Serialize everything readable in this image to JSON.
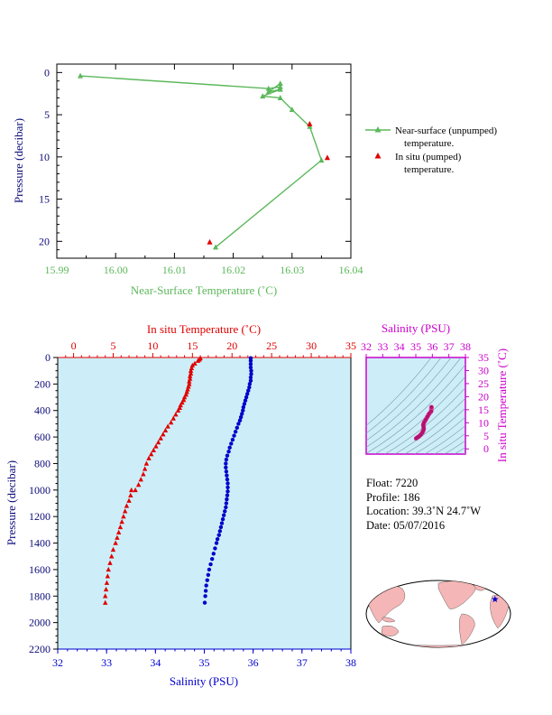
{
  "colors": {
    "green": "#5cb85c",
    "red": "#e00000",
    "blue": "#0000cc",
    "magenta": "#cc00cc",
    "navy": "#0b0b7a",
    "pink": "#e0449a",
    "panel_bg": "#cdeef8",
    "frame": "#000000"
  },
  "chart_data": [
    {
      "type": "scatter",
      "title": "",
      "xlabel": "Near-Surface Temperature (˚C)",
      "ylabel": "Pressure (decibar)",
      "xlim": [
        15.99,
        16.04
      ],
      "ylim": [
        22,
        -1
      ],
      "x_ticks": [
        "15.99",
        "16.00",
        "16.01",
        "16.02",
        "16.03",
        "16.04"
      ],
      "y_ticks": [
        "0",
        "5",
        "10",
        "15",
        "20"
      ],
      "grid": false,
      "legend_position": "right",
      "legend": [
        {
          "line1": "Near-surface (unpumped)",
          "line2": "temperature."
        },
        {
          "line1": "In situ (pumped)",
          "line2": "temperature."
        }
      ],
      "series": [
        {
          "name": "Near-surface (unpumped) temperature",
          "points": [
            [
              15.994,
              0.4
            ],
            [
              16.026,
              1.9
            ],
            [
              16.028,
              1.7
            ],
            [
              16.028,
              1.3
            ],
            [
              16.026,
              2.3
            ],
            [
              16.028,
              2.0
            ],
            [
              16.025,
              2.8
            ],
            [
              16.028,
              3.0
            ],
            [
              16.03,
              4.4
            ],
            [
              16.033,
              6.4
            ],
            [
              16.035,
              10.4
            ],
            [
              16.017,
              20.7
            ]
          ]
        },
        {
          "name": "In situ (pumped) temperature",
          "points": [
            [
              16.033,
              6.1
            ],
            [
              16.036,
              10.1
            ],
            [
              16.016,
              20.1
            ]
          ]
        }
      ]
    },
    {
      "type": "scatter",
      "title": "",
      "x_top_label": "In situ Temperature (˚C)",
      "x_top_lim": [
        -2,
        35
      ],
      "x_top_ticks": [
        "0",
        "5",
        "10",
        "15",
        "20",
        "25",
        "30",
        "35"
      ],
      "x_bottom_label": "Salinity (PSU)",
      "x_bottom_lim": [
        32,
        38
      ],
      "x_bottom_ticks": [
        "32",
        "33",
        "34",
        "35",
        "36",
        "37",
        "38"
      ],
      "ylabel": "Pressure (decibar)",
      "ylim": [
        2200,
        0
      ],
      "y_ticks": [
        "0",
        "200",
        "400",
        "600",
        "800",
        "1000",
        "1200",
        "1400",
        "1600",
        "1800",
        "2000",
        "2200"
      ],
      "grid": false,
      "temperature_profile": [
        [
          16.0,
          5
        ],
        [
          15.9,
          15
        ],
        [
          15.7,
          25
        ],
        [
          15.3,
          45
        ],
        [
          15.0,
          60
        ],
        [
          14.9,
          80
        ],
        [
          14.8,
          100
        ],
        [
          14.8,
          120
        ],
        [
          14.7,
          140
        ],
        [
          14.7,
          160
        ],
        [
          14.6,
          180
        ],
        [
          14.6,
          200
        ],
        [
          14.5,
          220
        ],
        [
          14.4,
          240
        ],
        [
          14.3,
          260
        ],
        [
          14.2,
          280
        ],
        [
          14.0,
          300
        ],
        [
          13.9,
          320
        ],
        [
          13.7,
          340
        ],
        [
          13.5,
          360
        ],
        [
          13.4,
          380
        ],
        [
          13.2,
          400
        ],
        [
          12.9,
          430
        ],
        [
          12.6,
          460
        ],
        [
          12.3,
          490
        ],
        [
          11.9,
          520
        ],
        [
          11.6,
          550
        ],
        [
          11.3,
          580
        ],
        [
          11.0,
          610
        ],
        [
          10.7,
          640
        ],
        [
          10.4,
          670
        ],
        [
          10.1,
          700
        ],
        [
          9.8,
          730
        ],
        [
          9.5,
          760
        ],
        [
          9.2,
          800
        ],
        [
          9.0,
          840
        ],
        [
          8.8,
          880
        ],
        [
          8.5,
          920
        ],
        [
          8.2,
          960
        ],
        [
          7.8,
          1000
        ],
        [
          7.3,
          1000
        ],
        [
          7.2,
          1040
        ],
        [
          7.0,
          1080
        ],
        [
          6.7,
          1120
        ],
        [
          6.5,
          1160
        ],
        [
          6.3,
          1200
        ],
        [
          6.1,
          1240
        ],
        [
          5.9,
          1280
        ],
        [
          5.7,
          1320
        ],
        [
          5.5,
          1360
        ],
        [
          5.3,
          1400
        ],
        [
          5.0,
          1450
        ],
        [
          4.8,
          1500
        ],
        [
          4.6,
          1550
        ],
        [
          4.4,
          1600
        ],
        [
          4.3,
          1650
        ],
        [
          4.2,
          1700
        ],
        [
          4.1,
          1750
        ],
        [
          4.0,
          1800
        ],
        [
          4.0,
          1850
        ]
      ],
      "salinity_profile": [
        [
          35.95,
          5
        ],
        [
          35.95,
          25
        ],
        [
          35.95,
          50
        ],
        [
          35.95,
          75
        ],
        [
          35.96,
          100
        ],
        [
          35.96,
          125
        ],
        [
          35.95,
          150
        ],
        [
          35.95,
          175
        ],
        [
          35.93,
          200
        ],
        [
          35.92,
          225
        ],
        [
          35.9,
          250
        ],
        [
          35.88,
          275
        ],
        [
          35.86,
          300
        ],
        [
          35.84,
          325
        ],
        [
          35.82,
          350
        ],
        [
          35.8,
          375
        ],
        [
          35.79,
          400
        ],
        [
          35.77,
          425
        ],
        [
          35.75,
          450
        ],
        [
          35.73,
          475
        ],
        [
          35.7,
          500
        ],
        [
          35.67,
          530
        ],
        [
          35.64,
          560
        ],
        [
          35.61,
          590
        ],
        [
          35.58,
          620
        ],
        [
          35.55,
          650
        ],
        [
          35.52,
          680
        ],
        [
          35.5,
          710
        ],
        [
          35.47,
          740
        ],
        [
          35.45,
          770
        ],
        [
          35.44,
          800
        ],
        [
          35.44,
          830
        ],
        [
          35.45,
          860
        ],
        [
          35.46,
          890
        ],
        [
          35.47,
          920
        ],
        [
          35.48,
          950
        ],
        [
          35.48,
          980
        ],
        [
          35.48,
          1010
        ],
        [
          35.47,
          1040
        ],
        [
          35.46,
          1070
        ],
        [
          35.45,
          1100
        ],
        [
          35.44,
          1130
        ],
        [
          35.42,
          1160
        ],
        [
          35.4,
          1190
        ],
        [
          35.38,
          1220
        ],
        [
          35.36,
          1250
        ],
        [
          35.34,
          1280
        ],
        [
          35.32,
          1310
        ],
        [
          35.3,
          1340
        ],
        [
          35.27,
          1370
        ],
        [
          35.25,
          1400
        ],
        [
          35.22,
          1440
        ],
        [
          35.19,
          1480
        ],
        [
          35.16,
          1520
        ],
        [
          35.13,
          1560
        ],
        [
          35.1,
          1600
        ],
        [
          35.08,
          1640
        ],
        [
          35.06,
          1680
        ],
        [
          35.04,
          1720
        ],
        [
          35.03,
          1760
        ],
        [
          35.02,
          1800
        ],
        [
          35.01,
          1850
        ]
      ]
    },
    {
      "type": "scatter",
      "title": "",
      "xlabel": "Salinity (PSU)",
      "ylabel": "In situ Temperature (˚C)",
      "xlim": [
        32,
        38
      ],
      "ylim": [
        -2,
        35
      ],
      "x_ticks": [
        "32",
        "33",
        "34",
        "35",
        "36",
        "37",
        "38"
      ],
      "y_ticks": [
        "0",
        "5",
        "10",
        "15",
        "20",
        "25",
        "30",
        "35"
      ],
      "grid": false,
      "ts_curve": [
        [
          35.95,
          16.0
        ],
        [
          35.93,
          14.4
        ],
        [
          35.8,
          13.4
        ],
        [
          35.7,
          12.3
        ],
        [
          35.6,
          11.2
        ],
        [
          35.5,
          10.1
        ],
        [
          35.45,
          9.2
        ],
        [
          35.47,
          8.5
        ],
        [
          35.48,
          7.7
        ],
        [
          35.45,
          7.0
        ],
        [
          35.4,
          6.3
        ],
        [
          35.3,
          5.4
        ],
        [
          35.2,
          4.8
        ],
        [
          35.1,
          4.4
        ],
        [
          35.02,
          4.0
        ]
      ]
    }
  ],
  "float_info": {
    "float_line": "Float:  7220",
    "profile_line": "Profile:  186",
    "location_line": "Location:  39.3˚N  24.7˚W",
    "date_line": "Date:  05/07/2016"
  },
  "map": {
    "marker_lat": 39.3,
    "marker_lon": -24.7,
    "land_color": "#f4b6b6",
    "ocean_color": "#ffffff",
    "marker_color": "#0000cc"
  }
}
